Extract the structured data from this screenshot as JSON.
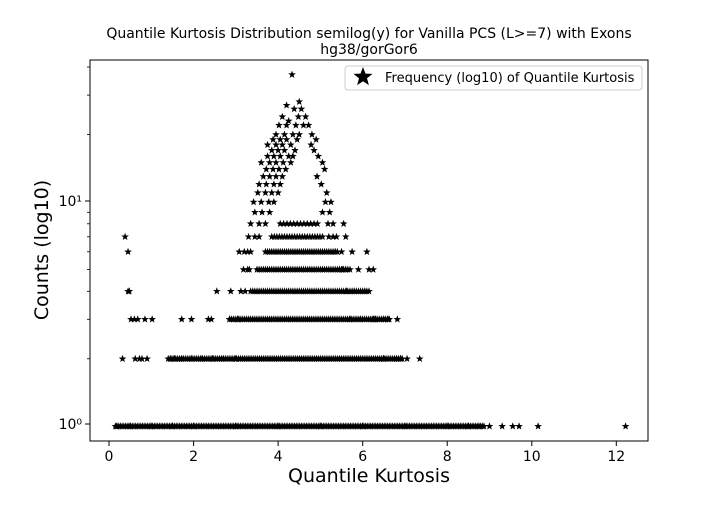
{
  "chart_data": {
    "type": "scatter",
    "scale_y": "log",
    "marker": "star",
    "marker_color": "#000000",
    "title_line1": "Quantile Kurtosis Distribution semilog(y) for Vanilla PCS (L>=7) with Exons",
    "title_line2": "hg38/gorGor6",
    "xlabel": "Quantile Kurtosis",
    "ylabel": "Counts (log10)",
    "xlim": [
      -0.45,
      12.75
    ],
    "ylim": [
      0.86,
      43
    ],
    "xticks": [
      0,
      2,
      4,
      6,
      8,
      10,
      12
    ],
    "xtick_labels": [
      "0",
      "2",
      "4",
      "6",
      "8",
      "10",
      "12"
    ],
    "ytick_labels": [
      "10⁰",
      "10¹"
    ],
    "legend": {
      "position": "top-right",
      "label": "Frequency (log10) of Quantile Kurtosis"
    },
    "series": [
      {
        "name": "Frequency (log10) of Quantile Kurtosis",
        "points": [
          [
            0.38,
            7
          ],
          [
            0.45,
            6
          ],
          [
            0.45,
            4
          ],
          [
            0.48,
            4
          ],
          [
            0.52,
            3
          ],
          [
            0.6,
            3
          ],
          [
            0.68,
            3
          ],
          [
            0.85,
            3
          ],
          [
            1.02,
            3
          ],
          [
            1.72,
            3
          ],
          [
            1.95,
            3
          ],
          [
            2.35,
            3
          ],
          [
            2.42,
            3
          ],
          [
            2.85,
            3
          ],
          [
            3.05,
            3
          ],
          [
            2.55,
            4
          ],
          [
            2.88,
            4
          ],
          [
            3.12,
            4
          ],
          [
            3.22,
            4
          ],
          [
            3.18,
            5
          ],
          [
            3.28,
            5
          ],
          [
            3.32,
            5
          ],
          [
            3.08,
            6
          ],
          [
            3.2,
            6
          ],
          [
            3.28,
            6
          ],
          [
            3.35,
            6
          ],
          [
            3.3,
            7
          ],
          [
            3.45,
            7
          ],
          [
            3.55,
            7
          ],
          [
            3.35,
            8
          ],
          [
            3.55,
            8
          ],
          [
            3.7,
            8
          ],
          [
            3.45,
            9
          ],
          [
            3.62,
            9
          ],
          [
            3.8,
            9
          ],
          [
            3.42,
            10
          ],
          [
            3.6,
            10
          ],
          [
            3.78,
            10
          ],
          [
            3.9,
            10
          ],
          [
            3.52,
            11
          ],
          [
            3.7,
            11
          ],
          [
            3.85,
            11
          ],
          [
            4.0,
            11
          ],
          [
            3.55,
            12
          ],
          [
            3.72,
            12
          ],
          [
            3.9,
            12
          ],
          [
            4.05,
            12
          ],
          [
            3.65,
            13
          ],
          [
            3.8,
            13
          ],
          [
            3.95,
            13
          ],
          [
            4.1,
            13
          ],
          [
            3.72,
            14
          ],
          [
            3.88,
            14
          ],
          [
            4.02,
            14
          ],
          [
            4.18,
            14
          ],
          [
            3.6,
            15
          ],
          [
            3.8,
            15
          ],
          [
            3.95,
            15
          ],
          [
            4.12,
            15
          ],
          [
            4.3,
            15
          ],
          [
            3.75,
            16
          ],
          [
            3.9,
            16
          ],
          [
            4.05,
            16
          ],
          [
            4.25,
            16
          ],
          [
            4.35,
            16
          ],
          [
            3.85,
            17
          ],
          [
            4.0,
            17
          ],
          [
            4.15,
            17
          ],
          [
            4.4,
            17
          ],
          [
            3.75,
            18
          ],
          [
            3.95,
            18
          ],
          [
            4.1,
            18
          ],
          [
            4.3,
            18
          ],
          [
            3.88,
            19
          ],
          [
            4.05,
            19
          ],
          [
            4.2,
            19
          ],
          [
            4.45,
            19
          ],
          [
            3.95,
            20
          ],
          [
            4.15,
            20
          ],
          [
            4.35,
            20
          ],
          [
            4.5,
            20
          ],
          [
            4.02,
            22
          ],
          [
            4.2,
            22
          ],
          [
            4.42,
            22
          ],
          [
            4.6,
            22
          ],
          [
            4.1,
            24
          ],
          [
            4.25,
            23
          ],
          [
            4.48,
            24
          ],
          [
            4.65,
            24
          ],
          [
            4.2,
            27
          ],
          [
            4.38,
            26
          ],
          [
            4.55,
            26
          ],
          [
            4.5,
            28
          ],
          [
            4.33,
            37
          ],
          [
            4.72,
            22
          ],
          [
            4.8,
            20
          ],
          [
            4.9,
            19
          ],
          [
            4.78,
            18
          ],
          [
            4.85,
            17
          ],
          [
            4.95,
            16
          ],
          [
            5.05,
            15
          ],
          [
            5.1,
            14
          ],
          [
            4.92,
            13
          ],
          [
            5.02,
            12
          ],
          [
            5.15,
            11
          ],
          [
            5.25,
            10
          ],
          [
            5.05,
            9
          ],
          [
            5.18,
            8
          ],
          [
            5.3,
            7
          ],
          [
            5.4,
            6
          ],
          [
            5.52,
            5
          ],
          [
            5.62,
            4
          ],
          [
            5.7,
            3
          ],
          [
            5.35,
            6
          ],
          [
            5.45,
            5
          ],
          [
            5.2,
            7
          ],
          [
            5.12,
            10
          ],
          [
            5.22,
            9
          ],
          [
            5.3,
            8
          ],
          [
            5.38,
            7
          ],
          [
            5.5,
            6
          ],
          [
            5.6,
            5
          ],
          [
            5.8,
            4
          ],
          [
            5.95,
            3
          ],
          [
            5.55,
            8
          ],
          [
            5.6,
            7
          ],
          [
            5.75,
            6
          ],
          [
            5.9,
            5
          ],
          [
            6.05,
            4
          ],
          [
            6.25,
            3
          ],
          [
            6.1,
            6
          ],
          [
            6.15,
            5
          ],
          [
            6.25,
            5
          ],
          [
            6.15,
            4
          ],
          [
            6.3,
            3
          ],
          [
            6.5,
            3
          ],
          [
            6.6,
            3
          ],
          [
            6.82,
            3
          ],
          [
            6.9,
            2
          ],
          [
            7.35,
            2
          ],
          [
            0.32,
            2
          ],
          [
            0.62,
            2
          ],
          [
            0.72,
            2
          ],
          [
            0.78,
            2
          ],
          [
            0.9,
            2
          ],
          [
            1.45,
            2
          ],
          [
            1.55,
            2
          ],
          [
            1.72,
            2
          ],
          [
            1.95,
            2
          ],
          [
            2.2,
            2
          ],
          [
            2.45,
            2
          ],
          [
            2.7,
            2
          ],
          [
            3.0,
            2
          ],
          [
            6.5,
            2
          ],
          [
            6.8,
            2
          ],
          [
            7.05,
            2
          ],
          [
            0.18,
            1
          ],
          [
            0.5,
            1
          ],
          [
            1.0,
            1
          ],
          [
            1.5,
            1
          ],
          [
            2.0,
            1
          ],
          [
            3.0,
            1
          ],
          [
            4.0,
            1
          ],
          [
            5.0,
            1
          ],
          [
            6.0,
            1
          ],
          [
            7.0,
            1
          ],
          [
            8.0,
            1
          ],
          [
            8.5,
            1
          ],
          [
            8.75,
            1
          ],
          [
            9.0,
            1
          ],
          [
            9.3,
            1
          ],
          [
            9.55,
            1
          ],
          [
            9.7,
            1
          ],
          [
            10.15,
            1
          ],
          [
            12.22,
            1
          ]
        ],
        "bands": [
          {
            "y": 1,
            "x_from": 0.15,
            "x_to": 8.9,
            "step": 0.04
          },
          {
            "y": 2,
            "x_from": 1.4,
            "x_to": 6.95,
            "step": 0.045
          },
          {
            "y": 3,
            "x_from": 2.85,
            "x_to": 6.65,
            "step": 0.045
          },
          {
            "y": 4,
            "x_from": 3.35,
            "x_to": 6.1,
            "step": 0.05
          },
          {
            "y": 5,
            "x_from": 3.5,
            "x_to": 5.7,
            "step": 0.05
          },
          {
            "y": 6,
            "x_from": 3.7,
            "x_to": 5.35,
            "step": 0.05
          },
          {
            "y": 7,
            "x_from": 3.85,
            "x_to": 5.1,
            "step": 0.06
          },
          {
            "y": 8,
            "x_from": 4.05,
            "x_to": 4.95,
            "step": 0.08
          }
        ]
      }
    ]
  }
}
